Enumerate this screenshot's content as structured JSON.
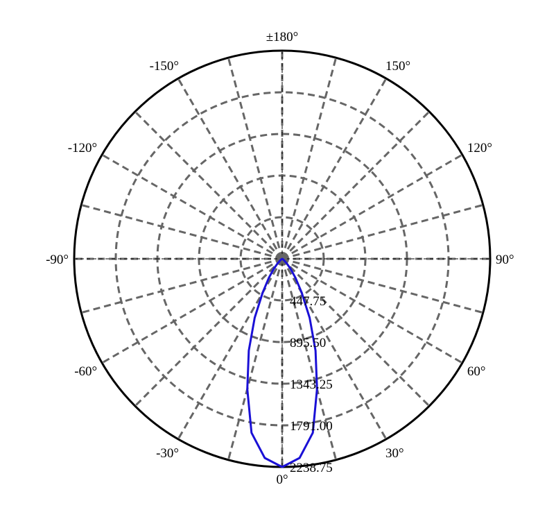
{
  "chart_data": {
    "type": "polar-line",
    "title": "",
    "angle_unit": "degrees",
    "angle_zero": "bottom",
    "angle_direction": "counterclockwise-positive-right",
    "angle_tick_labels": [
      "0°",
      "30°",
      "60°",
      "90°",
      "120°",
      "150°",
      "±180°",
      "-150°",
      "-120°",
      "-90°",
      "-60°",
      "-30°"
    ],
    "angle_ticks": [
      0,
      30,
      60,
      90,
      120,
      150,
      180,
      -150,
      -120,
      -90,
      -60,
      -30
    ],
    "angle_grid_step": 15,
    "radial_tick_labels": [
      "447.75",
      "895.50",
      "1343.25",
      "1791.00",
      "2238.75"
    ],
    "radial_ticks": [
      447.75,
      895.5,
      1343.25,
      1791.0,
      2238.75
    ],
    "rlim": [
      0,
      2238.75
    ],
    "grid": true,
    "colors": {
      "series": "#1a10d6",
      "grid": "#666666",
      "frame": "#000000"
    },
    "series": [
      {
        "angles": [
          -90,
          -60,
          -50,
          -45,
          -40,
          -35,
          -30,
          -25,
          -20,
          -15,
          -10,
          -5,
          0,
          5,
          10,
          15,
          20,
          25,
          30,
          35,
          40,
          45,
          50,
          60,
          90
        ],
        "values": [
          0,
          10,
          30,
          70,
          140,
          250,
          420,
          700,
          1050,
          1450,
          1900,
          2150,
          2238.75,
          2150,
          1900,
          1450,
          1050,
          700,
          420,
          250,
          140,
          70,
          30,
          10,
          0
        ]
      }
    ]
  }
}
